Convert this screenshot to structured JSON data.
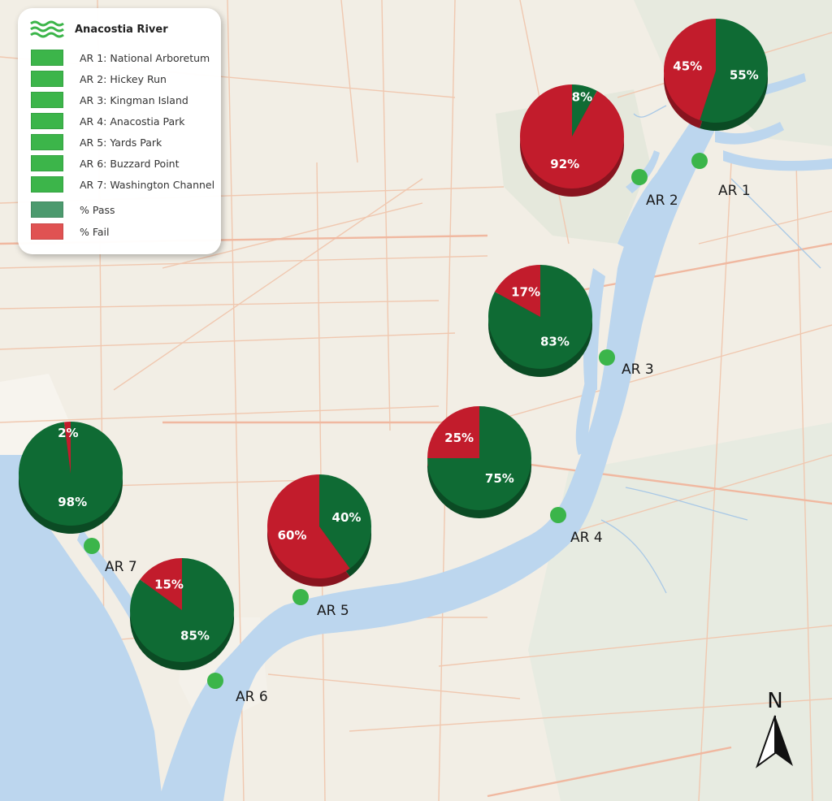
{
  "legend": {
    "title": "Anacostia River",
    "items": [
      {
        "label": "AR 1: National Arboretum",
        "color": "#3cb54a"
      },
      {
        "label": "AR 2: Hickey Run",
        "color": "#3cb54a"
      },
      {
        "label": "AR 3: Kingman Island",
        "color": "#3cb54a"
      },
      {
        "label": "AR 4: Anacostia Park",
        "color": "#3cb54a"
      },
      {
        "label": "AR 5: Yards Park",
        "color": "#3cb54a"
      },
      {
        "label": "AR 6: Buzzard Point",
        "color": "#3cb54a"
      },
      {
        "label": "AR 7: Washington Channel",
        "color": "#3cb54a"
      }
    ],
    "pass": {
      "label": "% Pass",
      "color": "#4c9a6e"
    },
    "fail": {
      "label": "% Fail",
      "color": "#e05252"
    }
  },
  "colors": {
    "pass": "#0f6b34",
    "fail": "#c21c2c",
    "station": "#3bb54a",
    "water": "#bcd6ee",
    "land": "#f2eee5"
  },
  "north_label": "N",
  "chart_data": {
    "type": "pie",
    "series": [
      {
        "name": "AR 1",
        "pass": 55,
        "fail": 45,
        "pass_label": "55%",
        "fail_label": "45%"
      },
      {
        "name": "AR 2",
        "pass": 8,
        "fail": 92,
        "pass_label": "8%",
        "fail_label": "92%"
      },
      {
        "name": "AR 3",
        "pass": 83,
        "fail": 17,
        "pass_label": "83%",
        "fail_label": "17%"
      },
      {
        "name": "AR 4",
        "pass": 75,
        "fail": 25,
        "pass_label": "75%",
        "fail_label": "25%"
      },
      {
        "name": "AR 5",
        "pass": 40,
        "fail": 60,
        "pass_label": "40%",
        "fail_label": "60%"
      },
      {
        "name": "AR 6",
        "pass": 85,
        "fail": 15,
        "pass_label": "85%",
        "fail_label": "15%"
      },
      {
        "name": "AR 7",
        "pass": 98,
        "fail": 2,
        "pass_label": "98%",
        "fail_label": "2%"
      }
    ]
  }
}
